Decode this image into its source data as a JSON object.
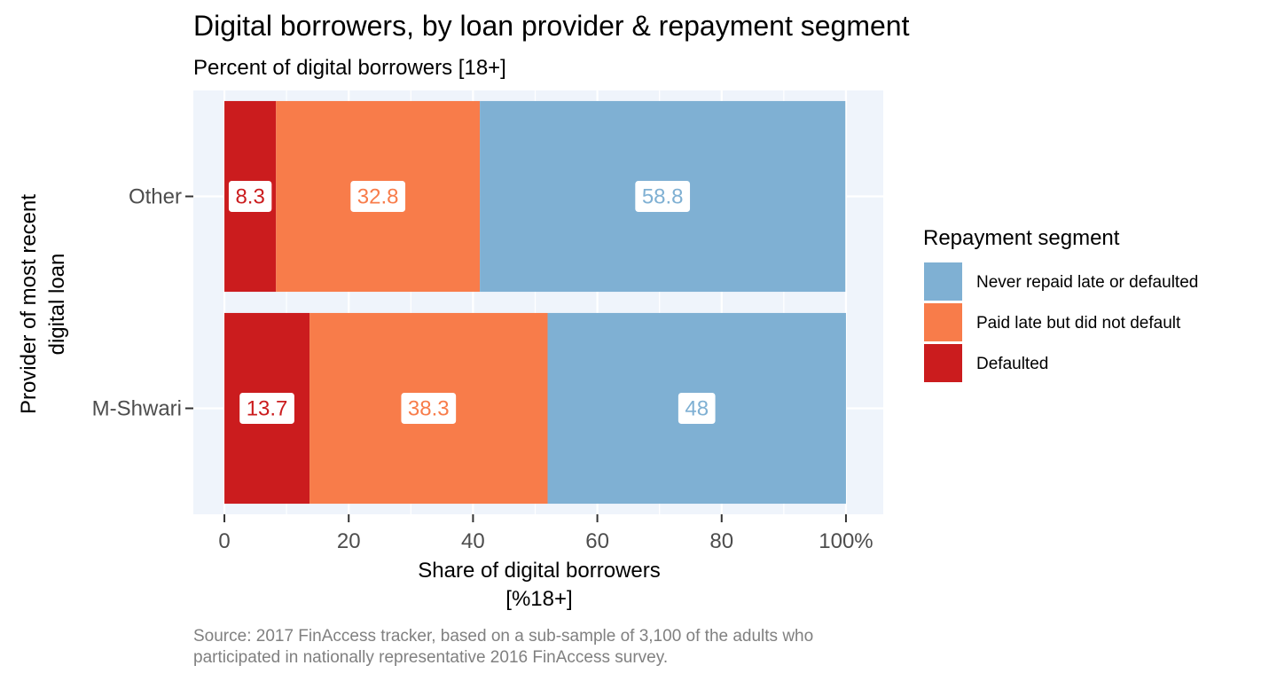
{
  "chart_data": {
    "type": "bar",
    "orientation": "horizontal",
    "stacked": true,
    "title": "Digital borrowers, by loan provider & repayment segment",
    "subtitle": "Percent of digital borrowers [18+]",
    "xlabel_lines": [
      "Share of digital borrowers",
      "[%18+]"
    ],
    "ylabel_lines": [
      "Provider of most recent",
      "digital loan"
    ],
    "caption_lines": [
      "Source: 2017 FinAccess tracker, based on a sub-sample of 3,100 of the adults who",
      "participated in nationally representative 2016 FinAccess survey."
    ],
    "categories": [
      "Other",
      "M-Shwari"
    ],
    "xlim": [
      -5,
      106
    ],
    "x_ticks": [
      0,
      20,
      40,
      60,
      80,
      100
    ],
    "x_tick_labels": [
      "0",
      "20",
      "40",
      "60",
      "80",
      "100%"
    ],
    "grid": true,
    "legend": {
      "title": "Repayment segment",
      "position": "right"
    },
    "stack_order": [
      "Defaulted",
      "Paid late but did not default",
      "Never repaid late or defaulted"
    ],
    "series": [
      {
        "name": "Never repaid late or defaulted",
        "color": "#7FB0D3",
        "values": [
          58.8,
          48
        ],
        "labels": [
          "58.8",
          "48"
        ]
      },
      {
        "name": "Paid late but did not default",
        "color": "#F87C4A",
        "values": [
          32.8,
          38.3
        ],
        "labels": [
          "32.8",
          "38.3"
        ]
      },
      {
        "name": "Defaulted",
        "color": "#CB1C1E",
        "values": [
          8.3,
          13.7
        ],
        "labels": [
          "8.3",
          "13.7"
        ]
      }
    ],
    "panel_background": "#EFF4FB"
  }
}
